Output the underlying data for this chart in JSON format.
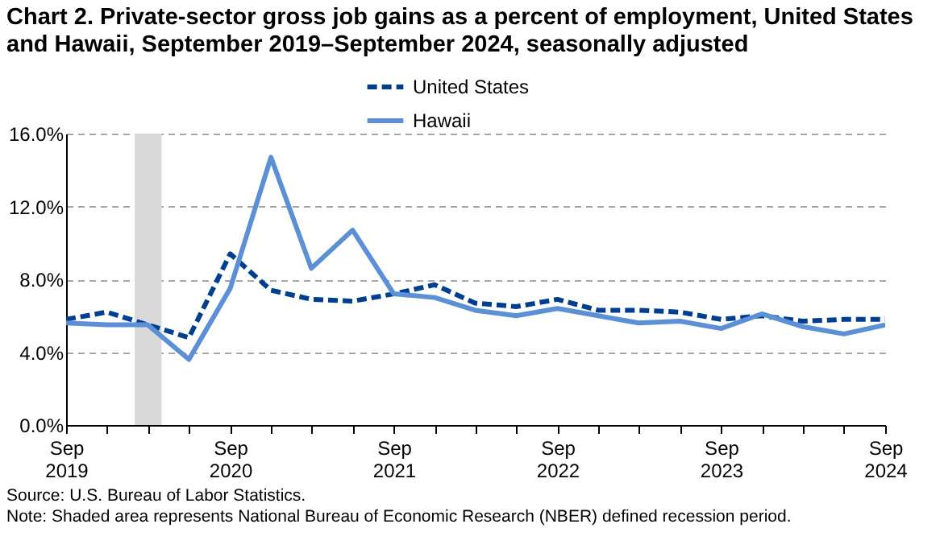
{
  "chart_data": {
    "type": "line",
    "title": "Chart 2. Private-sector gross job gains as a percent of employment, United States and Hawaii, September 2019–September 2024, seasonally adjusted",
    "x": [
      "2019-09",
      "2019-12",
      "2020-03",
      "2020-06",
      "2020-09",
      "2020-12",
      "2021-03",
      "2021-06",
      "2021-09",
      "2021-12",
      "2022-03",
      "2022-06",
      "2022-09",
      "2022-12",
      "2023-03",
      "2023-06",
      "2023-09",
      "2023-12",
      "2024-03",
      "2024-06",
      "2024-09"
    ],
    "series": [
      {
        "name": "United States",
        "color": "#003f8f",
        "line_style": "dashed",
        "values": [
          5.8,
          6.2,
          5.5,
          4.8,
          9.4,
          7.4,
          6.9,
          6.8,
          7.2,
          7.7,
          6.7,
          6.5,
          6.9,
          6.3,
          6.3,
          6.2,
          5.8,
          6.0,
          5.7,
          5.8,
          5.8
        ]
      },
      {
        "name": "Hawaii",
        "color": "#5b8fd6",
        "line_style": "solid",
        "values": [
          5.6,
          5.5,
          5.5,
          3.6,
          7.5,
          14.7,
          8.6,
          10.7,
          7.2,
          7.0,
          6.3,
          6.0,
          6.4,
          6.0,
          5.6,
          5.7,
          5.3,
          6.1,
          5.4,
          5.0,
          5.5
        ]
      }
    ],
    "xlim": [
      "2019-09",
      "2024-09"
    ],
    "xticks": [
      {
        "value": "2019-09",
        "label": "Sep 2019"
      },
      {
        "value": "2019-12",
        "label": null
      },
      {
        "value": "2020-03",
        "label": null
      },
      {
        "value": "2020-06",
        "label": null
      },
      {
        "value": "2020-09",
        "label": "Sep 2020"
      },
      {
        "value": "2020-12",
        "label": null
      },
      {
        "value": "2021-03",
        "label": null
      },
      {
        "value": "2021-06",
        "label": null
      },
      {
        "value": "2021-09",
        "label": "Sep 2021"
      },
      {
        "value": "2021-12",
        "label": null
      },
      {
        "value": "2022-03",
        "label": null
      },
      {
        "value": "2022-06",
        "label": null
      },
      {
        "value": "2022-09",
        "label": "Sep 2022"
      },
      {
        "value": "2022-12",
        "label": null
      },
      {
        "value": "2023-03",
        "label": null
      },
      {
        "value": "2023-06",
        "label": null
      },
      {
        "value": "2023-09",
        "label": "Sep 2023"
      },
      {
        "value": "2023-12",
        "label": null
      },
      {
        "value": "2024-03",
        "label": null
      },
      {
        "value": "2024-06",
        "label": null
      },
      {
        "value": "2024-09",
        "label": "Sep 2024"
      }
    ],
    "ylim": [
      0,
      16
    ],
    "yticks": [
      {
        "value": 0,
        "label": "0.0%"
      },
      {
        "value": 4,
        "label": "4.0%"
      },
      {
        "value": 8,
        "label": "8.0%"
      },
      {
        "value": 12,
        "label": "12.0%"
      },
      {
        "value": 16,
        "label": "16.0%"
      }
    ],
    "grid": "y",
    "legend": "top",
    "bands": [
      {
        "axis": "x",
        "from": "2020-02",
        "to": "2020-04",
        "color": "#d9d9d9"
      }
    ],
    "annotations": [
      "Source: U.S. Bureau of Labor Statistics.",
      "Note: Shaded area represents National Bureau of Economic Research (NBER) defined recession period."
    ]
  }
}
